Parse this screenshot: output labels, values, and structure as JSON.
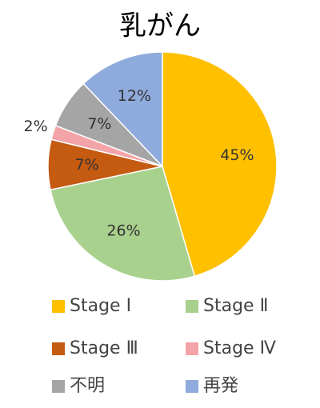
{
  "chart_data": {
    "type": "pie",
    "title": "乳がん",
    "categories": [
      "Stage Ⅰ",
      "Stage Ⅱ",
      "Stage Ⅲ",
      "Stage Ⅳ",
      "不明",
      "再発"
    ],
    "values": [
      45,
      26,
      7,
      2,
      7,
      12
    ],
    "value_labels": [
      "45%",
      "26%",
      "7%",
      "2%",
      "7%",
      "12%"
    ],
    "colors": [
      "#FFC000",
      "#A9D18E",
      "#C55A11",
      "#F4A3A8",
      "#A5A5A5",
      "#8FAADC"
    ]
  }
}
